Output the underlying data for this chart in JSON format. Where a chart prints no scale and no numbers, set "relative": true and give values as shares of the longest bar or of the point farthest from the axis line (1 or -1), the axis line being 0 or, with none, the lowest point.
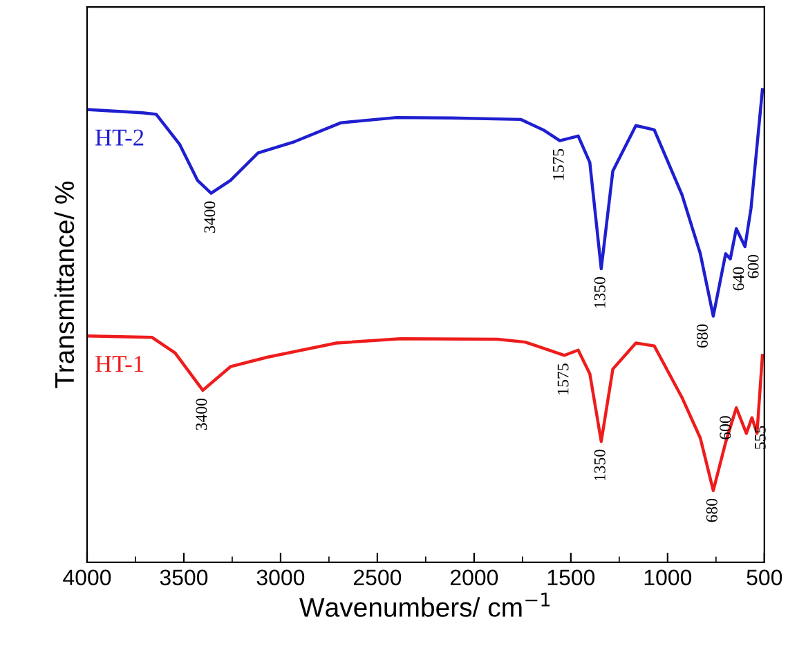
{
  "chart_data": {
    "type": "line",
    "relative": true,
    "xlabel": "Wavenumbers/ cm$^{−1}$",
    "ylabel": "Transmittance/ %",
    "xlim": [
      4000,
      500
    ],
    "xticks": [
      4000,
      {
        "value": 3750,
        "label": null
      },
      3500,
      {
        "value": 3250,
        "label": null
      },
      3000,
      {
        "value": 2750,
        "label": null
      },
      2500,
      {
        "value": 2250,
        "label": null
      },
      2000,
      {
        "value": 1750,
        "label": null
      },
      1500,
      {
        "value": 1250,
        "label": null
      },
      1000,
      {
        "value": 750,
        "label": null
      },
      500
    ],
    "tick_labels": "x",
    "grid": false,
    "legend": false,
    "marker": "none",
    "line_style": "solid",
    "series": [
      {
        "name": "HT-2",
        "color": "#1f1fd0",
        "x": [
          4000,
          3714,
          3643,
          3521,
          3429,
          3359,
          3259,
          3117,
          2928,
          2688,
          2402,
          2117,
          1759,
          1643,
          1557,
          1462,
          1402,
          1343,
          1283,
          1164,
          1069,
          926,
          831,
          764,
          700,
          676,
          645,
          600,
          569,
          510
        ],
        "values": [
          0.958,
          0.951,
          0.948,
          0.884,
          0.808,
          0.781,
          0.808,
          0.866,
          0.89,
          0.93,
          0.941,
          0.94,
          0.937,
          0.915,
          0.892,
          0.902,
          0.846,
          0.621,
          0.828,
          0.924,
          0.915,
          0.778,
          0.653,
          0.521,
          0.653,
          0.642,
          0.706,
          0.668,
          0.749,
          1.0
        ]
      },
      {
        "name": "HT-1",
        "color": "#ee1c1c",
        "x": [
          4000,
          3664,
          3545,
          3402,
          3259,
          3069,
          2712,
          2379,
          1879,
          1736,
          1533,
          1462,
          1402,
          1343,
          1283,
          1164,
          1069,
          926,
          831,
          764,
          700,
          645,
          593,
          564,
          538,
          510
        ],
        "values": [
          0.479,
          0.476,
          0.443,
          0.364,
          0.414,
          0.434,
          0.464,
          0.473,
          0.472,
          0.466,
          0.438,
          0.449,
          0.399,
          0.256,
          0.409,
          0.464,
          0.458,
          0.349,
          0.263,
          0.152,
          0.254,
          0.327,
          0.273,
          0.306,
          0.273,
          0.438
        ]
      }
    ],
    "annotations": [
      {
        "text": "3400",
        "x": 3359,
        "y": 0.781
      },
      {
        "text": "1575",
        "x": 1557,
        "y": 0.892
      },
      {
        "text": "1350",
        "x": 1343,
        "y": 0.621
      },
      {
        "text": "680",
        "x": 764,
        "y": 0.521
      },
      {
        "text": "640",
        "x": 676,
        "y": 0.642
      },
      {
        "text": "600",
        "x": 600,
        "y": 0.668
      },
      {
        "text": "3400",
        "x": 3402,
        "y": 0.364
      },
      {
        "text": "1575",
        "x": 1533,
        "y": 0.438
      },
      {
        "text": "1350",
        "x": 1343,
        "y": 0.256
      },
      {
        "text": "680",
        "x": 764,
        "y": 0.152
      },
      {
        "text": "600",
        "x": 645,
        "y": 0.327
      },
      {
        "text": "555",
        "x": 564,
        "y": 0.306
      }
    ]
  }
}
